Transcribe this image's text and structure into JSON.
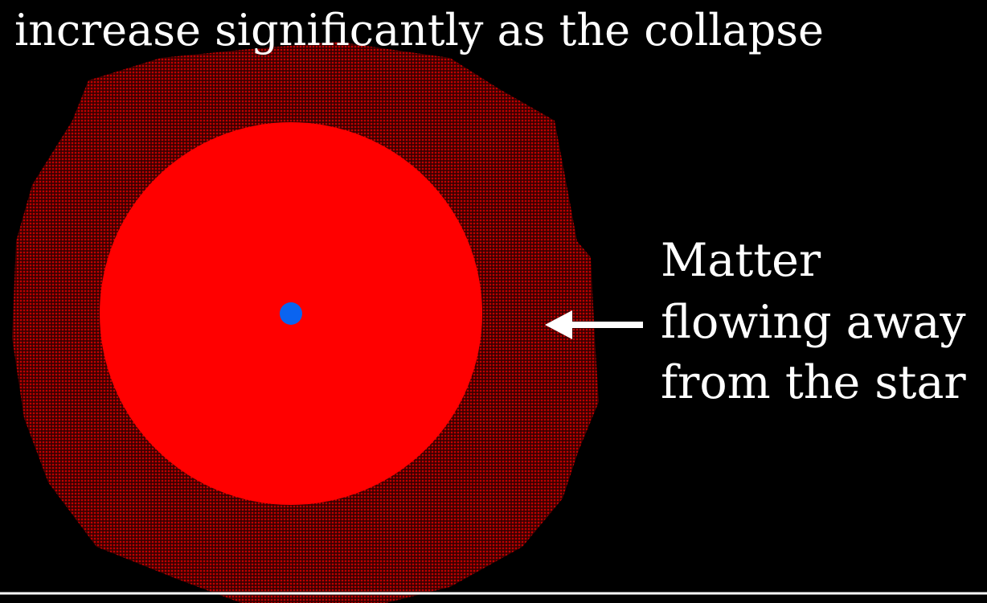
{
  "header": {
    "title": "increase significantly as the collapse"
  },
  "annotation": {
    "lines": [
      "Matter",
      "flowing away",
      "from the star"
    ]
  }
}
